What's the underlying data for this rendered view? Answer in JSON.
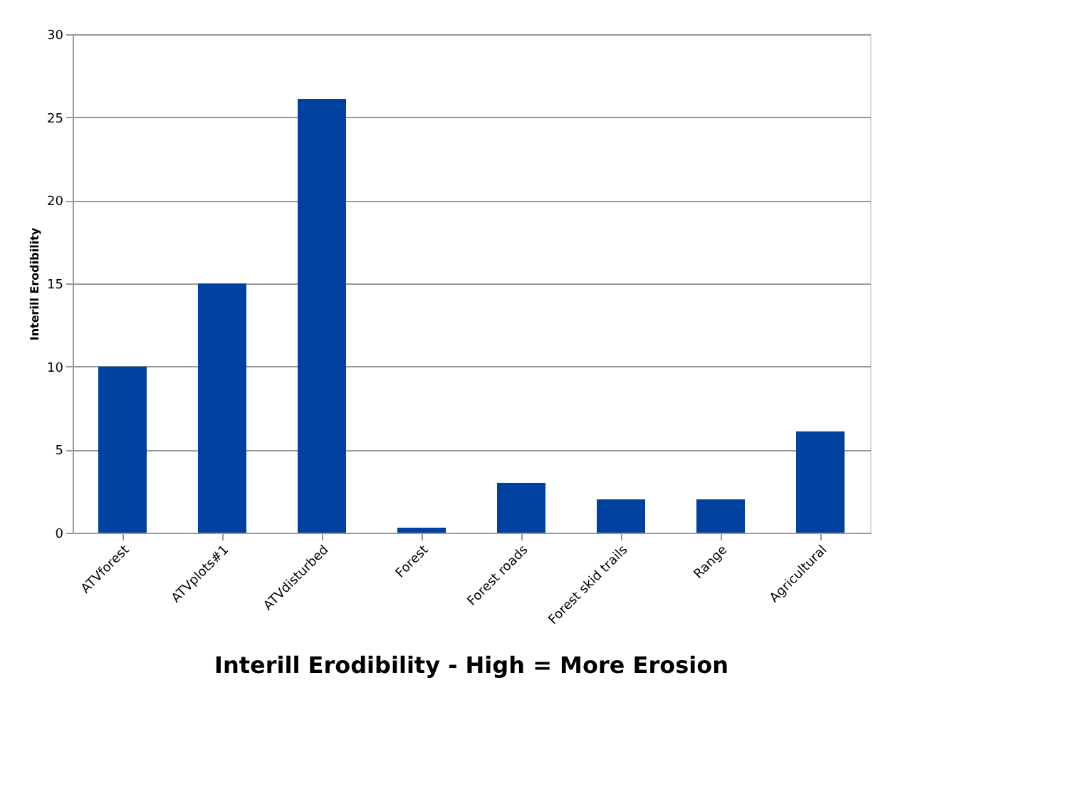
{
  "chart_data": {
    "type": "bar",
    "title": "Interill Erodibility - High = More Erosion",
    "ylabel": "Interill Erodibility",
    "categories": [
      "ATVforest",
      "ATVplots#1",
      "ATVdisturbed",
      "Forest",
      "Forest roads",
      "Forest skid trails",
      "Range",
      "Agricultural"
    ],
    "values": [
      10,
      15,
      26.1,
      0.3,
      3,
      2,
      2,
      6.1
    ],
    "color": "#0041a0",
    "ylim": [
      0,
      30
    ],
    "yticks": [
      0,
      5,
      10,
      15,
      20,
      25,
      30
    ],
    "grid": "y"
  }
}
